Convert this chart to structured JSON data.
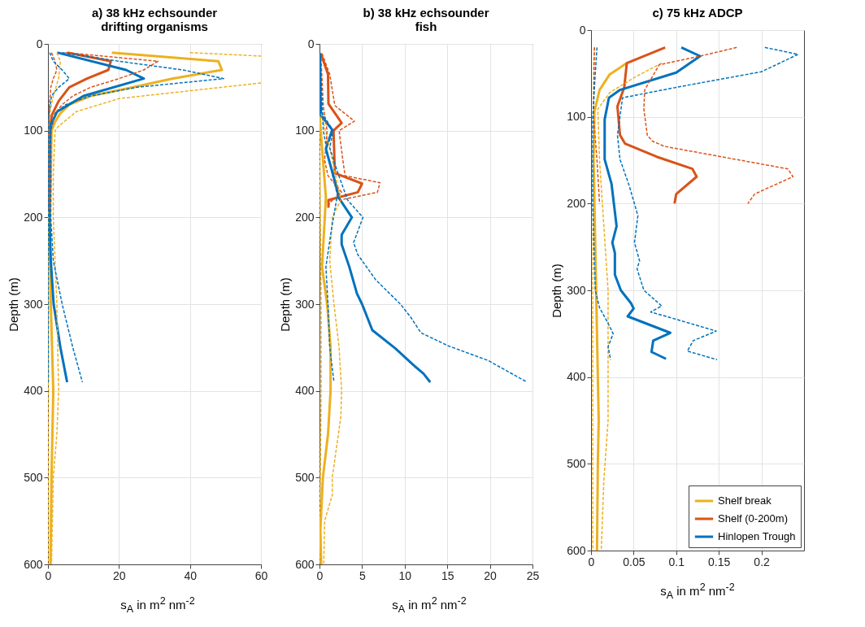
{
  "chart_data": [
    {
      "type": "line",
      "title": "a) 38 kHz echsounder\ndrifting organisms",
      "xlabel": "s$_{A}$ in m$^{2}$ nm$^{-2}$",
      "ylabel": "Depth (m)",
      "xlim": [
        0,
        60
      ],
      "xticks": [
        0,
        20,
        40,
        60
      ],
      "ylim": [
        600,
        0
      ],
      "yticks": [
        0,
        100,
        200,
        300,
        400,
        500,
        600
      ],
      "grid": true,
      "series": [
        {
          "color": "#edb120",
          "line_style": "solid",
          "x": [
            18,
            48,
            49,
            35,
            24,
            12,
            6,
            3.5,
            2,
            1,
            0.8,
            0.5,
            0.8,
            1.5,
            1,
            0.7
          ],
          "values": [
            10,
            20,
            30,
            40,
            50,
            60,
            70,
            80,
            90,
            100,
            150,
            200,
            300,
            400,
            500,
            600
          ]
        },
        {
          "color": "#edb120",
          "line_style": "dashed",
          "x": [
            40,
            60,
            null,
            60,
            20,
            8,
            3,
            2,
            1.5,
            1.5,
            2.5,
            3,
            2.5,
            1.5,
            1
          ],
          "values": [
            10,
            14,
            null,
            45,
            63,
            78,
            95,
            100,
            150,
            200,
            300,
            400,
            450,
            500,
            600
          ]
        },
        {
          "color": "#edb120",
          "line_style": "dashed",
          "x": [
            2.5,
            3.5,
            3,
            1.5,
            0.5,
            0.2,
            0.1,
            0.1
          ],
          "values": [
            10,
            20,
            40,
            60,
            80,
            100,
            300,
            600
          ]
        },
        {
          "color": "#d95319",
          "line_style": "solid",
          "x": [
            5.5,
            17.7,
            17,
            11,
            6,
            3,
            1.1,
            0.4,
            0.3,
            0.3
          ],
          "values": [
            10,
            20,
            30,
            40,
            50,
            66,
            82,
            100,
            150,
            190
          ]
        },
        {
          "color": "#d95319",
          "line_style": "dashed",
          "x": [
            5,
            31,
            27,
            20,
            12,
            7,
            4,
            2,
            0.8,
            0.6
          ],
          "values": [
            10,
            20,
            30,
            40,
            50,
            60,
            70,
            80,
            100,
            190
          ]
        },
        {
          "color": "#d95319",
          "line_style": "dashed",
          "x": [
            1,
            2,
            2.5,
            1.5,
            0.8,
            0.4,
            0.1,
            0.1
          ],
          "values": [
            10,
            20,
            30,
            40,
            50,
            70,
            100,
            190
          ]
        },
        {
          "color": "#0072bd",
          "line_style": "solid",
          "x": [
            2.6,
            22,
            27,
            10,
            2.6,
            0.7,
            0.3,
            0.4,
            0.8,
            1.6,
            3.5,
            5.4
          ],
          "values": [
            10,
            30,
            40,
            60,
            78,
            94,
            150,
            200,
            250,
            300,
            350,
            390
          ]
        },
        {
          "color": "#0072bd",
          "line_style": "dashed",
          "x": [
            4,
            20,
            38,
            49.5,
            25,
            12,
            5,
            2,
            0.8,
            0.8,
            1.5,
            4,
            7,
            9.7
          ],
          "values": [
            10,
            20,
            30,
            40,
            50,
            60,
            70,
            80,
            100,
            200,
            250,
            300,
            350,
            390
          ]
        },
        {
          "color": "#0072bd",
          "line_style": "dashed",
          "x": [
            0.5,
            1.5,
            4,
            6,
            3,
            1,
            0.3,
            0.1,
            0.1
          ],
          "values": [
            10,
            20,
            30,
            40,
            50,
            60,
            80,
            100,
            390
          ]
        }
      ]
    },
    {
      "type": "line",
      "title": "b) 38 kHz echsounder\nfish",
      "xlabel": "s$_{A}$ in m$^{2}$ nm$^{-2}$",
      "ylabel": "Depth (m)",
      "xlim": [
        0,
        25
      ],
      "xticks": [
        0,
        5,
        10,
        15,
        20,
        25
      ],
      "ylim": [
        600,
        0
      ],
      "yticks": [
        0,
        100,
        200,
        300,
        400,
        500,
        600
      ],
      "grid": true,
      "series": [
        {
          "color": "#edb120",
          "line_style": "solid",
          "x": [
            0,
            0.3,
            0.75,
            0.3,
            0.9,
            1.3,
            1.3,
            1,
            0.4,
            0.1,
            0.2
          ],
          "values": [
            80,
            120,
            177,
            257,
            300,
            350,
            400,
            450,
            500,
            560,
            600
          ]
        },
        {
          "color": "#edb120",
          "line_style": "dashed",
          "x": [
            0.2,
            1.2,
            2.5,
            1.5,
            1.2,
            1.7,
            2.3,
            2.6,
            2.5,
            1.5,
            1.5,
            0.6,
            0.5
          ],
          "values": [
            80,
            120,
            180,
            200,
            250,
            300,
            350,
            400,
            430,
            500,
            520,
            550,
            600
          ]
        },
        {
          "color": "#edb120",
          "line_style": "dashed",
          "x": [
            0,
            0.2,
            0.2,
            0
          ],
          "values": [
            100,
            300,
            400,
            600
          ]
        },
        {
          "color": "#d95319",
          "line_style": "solid",
          "x": [
            0.15,
            1,
            1.05,
            2.6,
            1.65,
            1.8,
            5,
            4.5,
            1.05,
            1.05
          ],
          "values": [
            11,
            35,
            69,
            91,
            100,
            149,
            161,
            171,
            180,
            189
          ]
        },
        {
          "color": "#d95319",
          "line_style": "dashed",
          "x": [
            0.3,
            1.2,
            1.8,
            4.1,
            2.3,
            2.7,
            3,
            7.1,
            6.8,
            2.4
          ],
          "values": [
            11,
            35,
            71,
            89,
            100,
            131,
            152,
            160,
            171,
            180
          ]
        },
        {
          "color": "#d95319",
          "line_style": "dashed",
          "x": [
            0.15,
            0.45,
            0.9,
            0.6,
            1,
            2.6,
            1.2,
            1
          ],
          "values": [
            11,
            72,
            100,
            134,
            152,
            171,
            183,
            189
          ]
        },
        {
          "color": "#0072bd",
          "line_style": "solid",
          "x": [
            0.05,
            0.15,
            1.5,
            0.75,
            1.8,
            2.3,
            3.8,
            2.6,
            2.6,
            3.5,
            4.4,
            5,
            6.2,
            8.9,
            11,
            12.2,
            13
          ],
          "values": [
            11,
            82,
            99,
            121,
            158,
            178,
            200,
            220,
            231,
            257,
            288,
            300,
            330,
            351,
            370,
            380,
            390
          ]
        },
        {
          "color": "#0072bd",
          "line_style": "dashed",
          "x": [
            0.1,
            0.3,
            1.6,
            1.2,
            2.2,
            3.3,
            5.1,
            4,
            4.5,
            6.6,
            9.5,
            10.7,
            11.9,
            15.1,
            19.8,
            24.2
          ],
          "values": [
            11,
            80,
            100,
            120,
            150,
            180,
            200,
            229,
            243,
            272,
            300,
            315,
            333,
            348,
            365,
            389
          ]
        },
        {
          "color": "#0072bd",
          "line_style": "dashed",
          "x": [
            0.05,
            0.45,
            1,
            2.1,
            1.4,
            0.75,
            1,
            1.2,
            1.7
          ],
          "values": [
            11,
            100,
            130,
            174,
            214,
            257,
            300,
            350,
            390
          ]
        }
      ]
    },
    {
      "type": "line",
      "title": "c) 75 kHz ADCP",
      "xlabel": "s$_{A}$ in m$^{2}$ nm$^{-2}$",
      "ylabel": "Depth (m)",
      "xlim": [
        0,
        0.25
      ],
      "xticks": [
        0,
        0.05,
        0.1,
        0.15,
        0.2
      ],
      "ylim": [
        600,
        0
      ],
      "yticks": [
        0,
        100,
        200,
        300,
        400,
        500,
        600
      ],
      "grid": true,
      "legend": "bottom right",
      "series": [
        {
          "name": "Shelf break",
          "color": "#edb120",
          "line_style": "solid",
          "x": [
            0.042,
            0.022,
            0.01,
            0.004,
            0.003,
            0.005,
            0.006,
            0.008,
            0.009,
            0.008,
            0.007
          ],
          "values": [
            38,
            51,
            69,
            94,
            150,
            250,
            300,
            400,
            450,
            500,
            600
          ]
        },
        {
          "color": "#edb120",
          "line_style": "dashed",
          "x": [
            0.083,
            0.052,
            0.022,
            0.008,
            0.01,
            0.02,
            0.02,
            0.02,
            0.015,
            0.012
          ],
          "values": [
            38,
            54,
            72,
            91,
            150,
            300,
            400,
            450,
            520,
            600
          ]
        },
        {
          "color": "#edb120",
          "line_style": "dashed",
          "x": [
            0.004,
            0.003,
            0.002,
            0.002
          ],
          "values": [
            20,
            38,
            300,
            600
          ]
        },
        {
          "name": "Shelf (0-200m)",
          "color": "#d95319",
          "line_style": "solid",
          "x": [
            0.087,
            0.042,
            0.039,
            0.031,
            0.034,
            0.04,
            0.077,
            0.119,
            0.124,
            0.1,
            0.098
          ],
          "values": [
            20,
            38,
            66,
            88,
            121,
            131,
            146,
            160,
            169,
            189,
            200
          ]
        },
        {
          "color": "#d95319",
          "line_style": "dashed",
          "x": [
            0.171,
            0.128,
            0.08,
            0.063,
            0.062,
            0.066,
            0.072,
            0.086,
            0.231,
            0.237,
            0.192,
            0.184
          ],
          "values": [
            20,
            30,
            40,
            69,
            91,
            121,
            128,
            134,
            160,
            169,
            189,
            200
          ]
        },
        {
          "color": "#d95319",
          "line_style": "dashed",
          "x": [
            0.004,
            0.003,
            0.007,
            0.01
          ],
          "values": [
            20,
            100,
            150,
            200
          ]
        },
        {
          "name": "Hinlopen Trough",
          "color": "#0072bd",
          "line_style": "solid",
          "x": [
            0.106,
            0.128,
            0.1,
            0.034,
            0.021,
            0.016,
            0.016,
            0.024,
            0.03,
            0.025,
            0.028,
            0.028,
            0.035,
            0.047,
            0.05,
            0.043,
            0.093,
            0.073,
            0.071,
            0.088
          ],
          "values": [
            20,
            30,
            49,
            69,
            78,
            103,
            149,
            177,
            226,
            245,
            257,
            282,
            300,
            315,
            321,
            330,
            349,
            358,
            371,
            379
          ]
        },
        {
          "color": "#0072bd",
          "line_style": "dashed",
          "x": [
            0.204,
            0.243,
            0.2,
            0.1,
            0.037,
            0.031,
            0.034,
            0.045,
            0.055,
            0.051,
            0.057,
            0.054,
            0.062,
            0.083,
            0.07,
            0.088,
            0.147,
            0.12,
            0.113,
            0.148
          ],
          "values": [
            20,
            28,
            48,
            66,
            78,
            121,
            149,
            180,
            214,
            245,
            266,
            275,
            300,
            318,
            325,
            330,
            347,
            358,
            370,
            380
          ]
        },
        {
          "color": "#0072bd",
          "line_style": "dashed",
          "x": [
            0.007,
            0.005,
            0.002,
            0.002,
            0.005,
            0.01,
            0.02,
            0.026,
            0.02,
            0.023
          ],
          "values": [
            20,
            50,
            100,
            200,
            300,
            320,
            338,
            350,
            365,
            380
          ]
        }
      ]
    }
  ]
}
